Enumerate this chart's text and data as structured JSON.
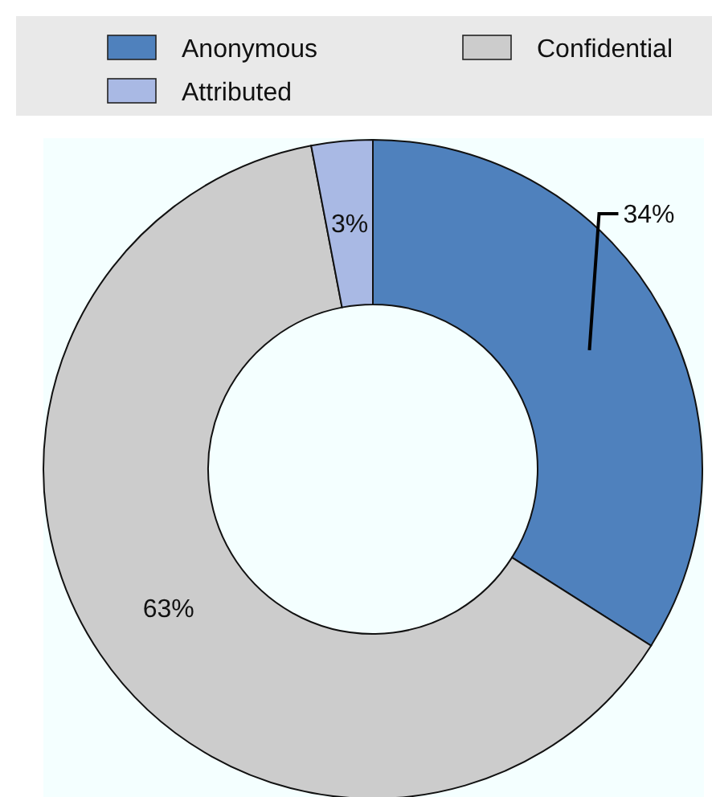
{
  "chart_data": {
    "type": "donut",
    "categories": [
      "Anonymous",
      "Confidential",
      "Attributed"
    ],
    "values": [
      34,
      63,
      3
    ],
    "colors": [
      "#4f81bd",
      "#cccccc",
      "#a9b9e4"
    ],
    "value_labels": [
      "34%",
      "63%",
      "3%"
    ],
    "legend": "top"
  }
}
